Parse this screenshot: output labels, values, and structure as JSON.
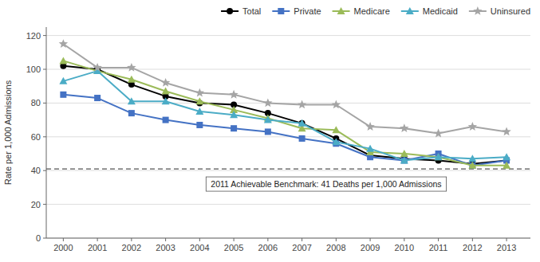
{
  "chart_data": {
    "type": "line",
    "x": [
      2000,
      2001,
      2002,
      2003,
      2004,
      2005,
      2006,
      2007,
      2008,
      2009,
      2010,
      2011,
      2012,
      2013
    ],
    "series": [
      {
        "name": "Total",
        "color": "#000000",
        "marker": "circle",
        "values": [
          102,
          100,
          91,
          84,
          80,
          79,
          74,
          68,
          59,
          49,
          47,
          46,
          44,
          46
        ]
      },
      {
        "name": "Private",
        "color": "#4472C4",
        "marker": "square",
        "values": [
          85,
          83,
          74,
          70,
          67,
          65,
          63,
          59,
          56,
          48,
          46,
          50,
          43,
          46
        ]
      },
      {
        "name": "Medicare",
        "color": "#9BBB59",
        "marker": "triangle",
        "values": [
          105,
          99,
          94,
          87,
          81,
          76,
          71,
          65,
          64,
          51,
          50,
          48,
          43,
          43
        ]
      },
      {
        "name": "Medicaid",
        "color": "#4BACC6",
        "marker": "triangle",
        "values": [
          93,
          99,
          81,
          81,
          75,
          73,
          70,
          68,
          57,
          53,
          46,
          48,
          47,
          48
        ]
      },
      {
        "name": "Uninsured",
        "color": "#A5A5A5",
        "marker": "star",
        "values": [
          115,
          101,
          101,
          92,
          86,
          85,
          80,
          79,
          79,
          66,
          65,
          62,
          66,
          63
        ]
      }
    ],
    "annotations": [
      {
        "text": "2011 Achievable Benchmark: 41 Deaths per 1,000 Admissions",
        "y": 41,
        "line_style": "dashed"
      }
    ],
    "y_label": "Rate per 1,000 Admissions",
    "xlim": [
      1999.5,
      2013.7
    ],
    "xticks": [
      2000,
      2001,
      2002,
      2003,
      2004,
      2005,
      2006,
      2007,
      2008,
      2009,
      2010,
      2011,
      2012,
      2013
    ],
    "ylim": [
      0,
      125
    ],
    "yticks": [
      0,
      20,
      40,
      60,
      80,
      100,
      120
    ],
    "grid": true,
    "legend": "top"
  }
}
